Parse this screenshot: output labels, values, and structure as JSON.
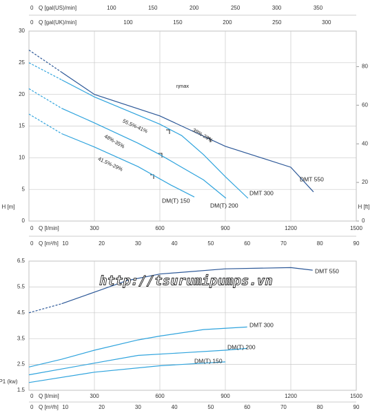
{
  "chart_data": [
    {
      "type": "line",
      "ylabel": "H [m]",
      "ylim": [
        0,
        30
      ],
      "yticks": [
        0,
        5,
        10,
        15,
        20,
        25,
        30
      ],
      "y2label": "H [ft]",
      "y2lim": [
        0,
        98.4
      ],
      "y2ticks": [
        0,
        20,
        40,
        60,
        80
      ],
      "x_axes": [
        {
          "label": "Q [gal(US)/min]",
          "lim": [
            0,
            396.3
          ],
          "ticks": [
            0,
            100,
            150,
            200,
            250,
            300,
            350
          ]
        },
        {
          "label": "Q [gal(UK)/min]",
          "lim": [
            0,
            330
          ],
          "ticks": [
            0,
            100,
            150,
            200,
            250,
            300
          ]
        },
        {
          "label": "Q [l/min]",
          "lim": [
            0,
            1500
          ],
          "ticks": [
            0,
            300,
            600,
            900,
            1200,
            1500
          ]
        },
        {
          "label": "Q [m³/h]",
          "lim": [
            0,
            90
          ],
          "ticks": [
            0,
            10,
            20,
            30,
            40,
            50,
            60,
            70,
            80,
            90
          ]
        }
      ],
      "grid": true,
      "series": [
        {
          "name": "DMT 550",
          "color": "#2b5797",
          "dashed_points": 2,
          "x": [
            0,
            150,
            300,
            600,
            700,
            900,
            1200,
            1304
          ],
          "values": [
            27,
            23.5,
            20,
            16.6,
            15,
            11.8,
            8.5,
            4.6
          ]
        },
        {
          "name": "DMT 300",
          "color": "#2ea3dd",
          "dashed_points": 2,
          "x": [
            0,
            150,
            300,
            600,
            700,
            800,
            900,
            1004
          ],
          "values": [
            25,
            22.3,
            19.6,
            15.3,
            13.5,
            10.5,
            7,
            3.6
          ]
        },
        {
          "name": "DM(T) 200",
          "color": "#2ea3dd",
          "dashed_points": 2,
          "x": [
            0,
            150,
            300,
            500,
            600,
            800,
            903
          ],
          "values": [
            20.9,
            17.8,
            15.5,
            12.3,
            10.5,
            6.5,
            3.6
          ]
        },
        {
          "name": "DM(T) 150",
          "color": "#2ea3dd",
          "dashed_points": 2,
          "x": [
            0,
            150,
            300,
            500,
            650,
            758
          ],
          "values": [
            16.9,
            13.8,
            11.7,
            8.6,
            5.7,
            3.8
          ]
        }
      ],
      "annotations": [
        "ηmax",
        "55.5%-41%",
        "39%-28%",
        "48%-35%",
        "41.5%-29%"
      ]
    },
    {
      "type": "line",
      "ylabel": "P1 (kw)",
      "ylim": [
        1.5,
        6.5
      ],
      "yticks": [
        1.5,
        2.5,
        3.5,
        4.5,
        5.5,
        6.5
      ],
      "x_axes": [
        {
          "label": "Q [l/min]",
          "lim": [
            0,
            1500
          ],
          "ticks": [
            0,
            300,
            600,
            900,
            1200,
            1500
          ]
        },
        {
          "label": "Q [m³/h]",
          "lim": [
            0,
            90
          ],
          "ticks": [
            0,
            10,
            20,
            30,
            40,
            50,
            60,
            70,
            80,
            90
          ]
        }
      ],
      "grid": true,
      "series": [
        {
          "name": "DMT 550",
          "color": "#2b5797",
          "dashed_points": 2,
          "x": [
            0,
            150,
            300,
            450,
            600,
            900,
            1200,
            1300
          ],
          "values": [
            4.5,
            4.85,
            5.3,
            5.75,
            6.0,
            6.2,
            6.25,
            6.15
          ]
        },
        {
          "name": "DMT 300",
          "color": "#2ea3dd",
          "x": [
            0,
            150,
            300,
            500,
            600,
            800,
            1000
          ],
          "values": [
            2.4,
            2.7,
            3.05,
            3.45,
            3.6,
            3.85,
            3.95
          ]
        },
        {
          "name": "DM(T) 200",
          "color": "#2ea3dd",
          "x": [
            0,
            300,
            500,
            700,
            900,
            1000
          ],
          "values": [
            2.1,
            2.55,
            2.85,
            2.95,
            3.05,
            3.12
          ]
        },
        {
          "name": "DM(T) 150",
          "color": "#2ea3dd",
          "x": [
            0,
            300,
            600,
            800,
            900
          ],
          "values": [
            1.8,
            2.2,
            2.45,
            2.55,
            2.6
          ]
        }
      ],
      "watermark": "http://tsurumipumps.vn"
    }
  ]
}
